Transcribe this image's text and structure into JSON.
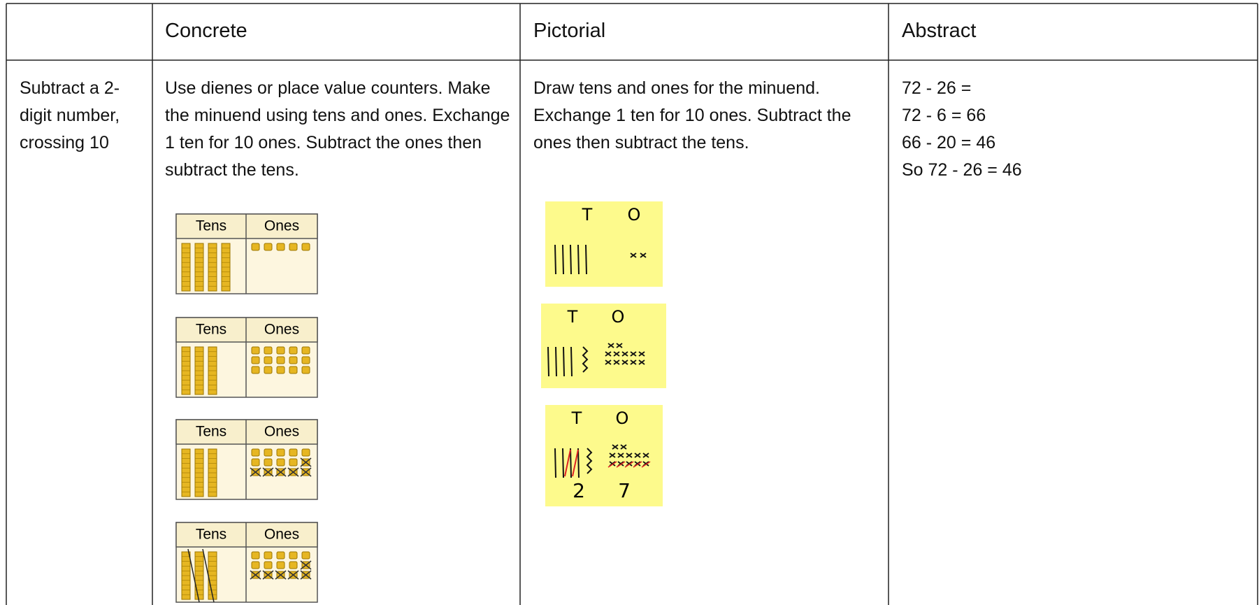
{
  "table": {
    "header": [
      "Concrete",
      "Pictorial",
      "Abstract"
    ],
    "rows": [
      {
        "label": "Subtract a 2-digit number, crossing 10",
        "concrete": {
          "text": "Use dienes or place value counters. Make the minuend using tens and ones. Exchange 1 ten for 10 ones. Subtract the ones then subtract the tens.",
          "charts": [
            {
              "tens_label": "Tens",
              "ones_label": "Ones"
            },
            {
              "tens_label": "Tens",
              "ones_label": "Ones"
            },
            {
              "tens_label": "Tens",
              "ones_label": "Ones"
            },
            {
              "tens_label": "Tens",
              "ones_label": "Ones"
            }
          ]
        },
        "pictorial": {
          "text": "Draw tens and ones for the minuend. Exchange 1 ten for 10 ones. Subtract the ones then subtract the tens.",
          "notes": [
            {
              "labels": [
                "T",
                "O"
              ]
            },
            {
              "labels": [
                "T",
                "O"
              ]
            },
            {
              "labels": [
                "T",
                "O"
              ],
              "digits": [
                "2",
                "7"
              ]
            }
          ]
        },
        "abstract": {
          "lines": [
            "72 - 26 =",
            "72 - 6 = 66",
            "66 - 20 = 46",
            "So 72 - 26 = 46"
          ]
        }
      }
    ]
  }
}
